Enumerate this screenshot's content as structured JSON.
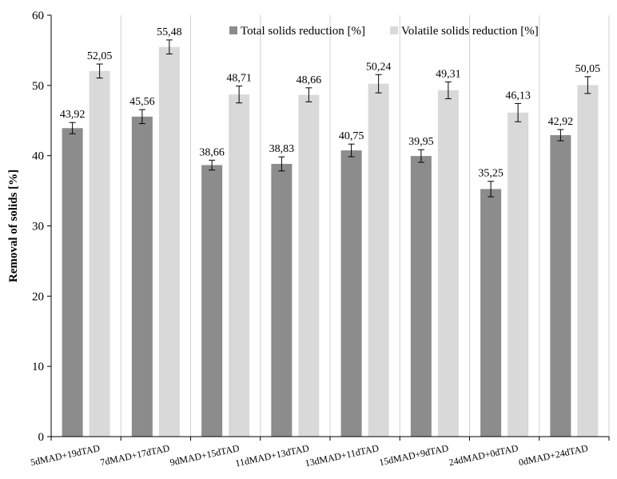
{
  "chart_data": {
    "type": "bar",
    "ylabel": "Removal of solids [%]",
    "xlabel": "",
    "ylim": [
      0,
      60
    ],
    "yticks": [
      0,
      10,
      20,
      30,
      40,
      50,
      60
    ],
    "grid": "vertical category separators",
    "legend_position": "top-right",
    "categories": [
      "5dMAD+19dTAD",
      "7dMAD+17dTAD",
      "9dMAD+15dTAD",
      "11dMAD+13dTAD",
      "13dMAD+11dTAD",
      "15dMAD+9dTAD",
      "24dMAD+0dTAD",
      "0dMAD+24dTAD"
    ],
    "series": [
      {
        "name": "Total solids reduction [%]",
        "color": "#8c8c8c",
        "values": [
          43.92,
          45.56,
          38.66,
          38.83,
          40.75,
          39.95,
          35.25,
          42.92
        ],
        "labels": [
          "43,92",
          "45,56",
          "38,66",
          "38,83",
          "40,75",
          "39,95",
          "35,25",
          "42,92"
        ],
        "errors": [
          0.8,
          1.0,
          0.7,
          1.0,
          0.9,
          0.9,
          1.1,
          0.8
        ]
      },
      {
        "name": "Volatile solids reduction [%]",
        "color": "#d9d9d9",
        "values": [
          52.05,
          55.48,
          48.71,
          48.66,
          50.24,
          49.31,
          46.13,
          50.05
        ],
        "labels": [
          "52,05",
          "55,48",
          "48,71",
          "48,66",
          "50,24",
          "49,31",
          "46,13",
          "50,05"
        ],
        "errors": [
          1.0,
          1.0,
          1.2,
          1.0,
          1.3,
          1.2,
          1.3,
          1.2
        ]
      }
    ]
  }
}
